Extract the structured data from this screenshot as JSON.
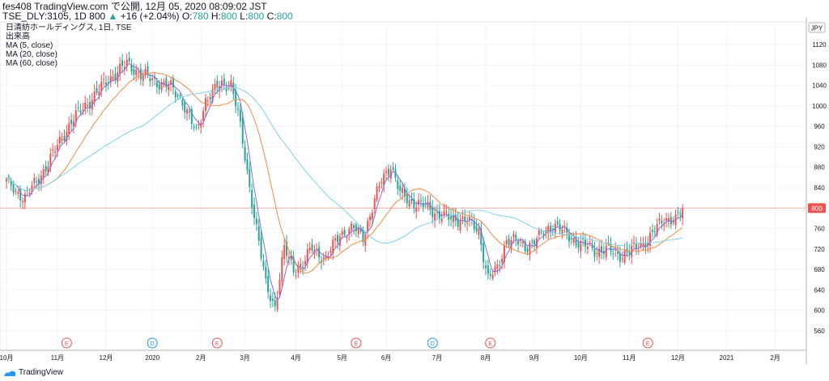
{
  "header": {
    "line1": "fes408 TradingView.com で公開, 12月 05, 2020 08:09:02 JST",
    "symbol_info": "TSE_DLY:3105, 1D 800",
    "change_arrow": "▲",
    "change": "+16 (+2.04%)",
    "o_label": "O:",
    "o_value": "780",
    "h_label": "H:",
    "h_value": "800",
    "l_label": "L:",
    "l_value": "800",
    "c_label": "C:",
    "c_value": "800"
  },
  "legend": {
    "title": "日清紡ホールディングス, 1日, TSE",
    "volume": "出来高",
    "ma5": "MA (5, close)",
    "ma20": "MA (20, close)",
    "ma60": "MA (60, close)"
  },
  "brand": {
    "name": "TradingView",
    "icon": "tradingview-logo-icon"
  },
  "colors": {
    "up": "#ef5350",
    "down": "#26a69a",
    "ma5": "#7e6fd8",
    "ma20": "#f28b45",
    "ma60": "#7fd3e6",
    "price_line": "#f7a8a8",
    "price_label_bg": "#ef5350",
    "grid": "#f0f3fa",
    "axis_text": "#131722",
    "event_E": "#ef5350",
    "event_D": "#2196f3"
  },
  "chart_data": {
    "type": "candlestick",
    "currency": "JPY",
    "last_price": 800,
    "ylim": [
      540,
      1140
    ],
    "y_ticks": [
      560,
      600,
      640,
      680,
      720,
      760,
      800,
      840,
      880,
      920,
      960,
      1000,
      1040,
      1080,
      1120
    ],
    "x_ticks": [
      {
        "label": "10月",
        "i": 0
      },
      {
        "label": "11月",
        "i": 22
      },
      {
        "label": "12月",
        "i": 43
      },
      {
        "label": "2020",
        "i": 63
      },
      {
        "label": "2月",
        "i": 84
      },
      {
        "label": "3月",
        "i": 103
      },
      {
        "label": "4月",
        "i": 125
      },
      {
        "label": "5月",
        "i": 145
      },
      {
        "label": "6月",
        "i": 164
      },
      {
        "label": "7月",
        "i": 186
      },
      {
        "label": "8月",
        "i": 207
      },
      {
        "label": "9月",
        "i": 228
      },
      {
        "label": "10月",
        "i": 248
      },
      {
        "label": "11月",
        "i": 269
      },
      {
        "label": "12月",
        "i": 290
      },
      {
        "label": "2021",
        "i": 311
      },
      {
        "label": "2月",
        "i": 332
      }
    ],
    "events": [
      {
        "type": "E",
        "i": 26
      },
      {
        "type": "D",
        "i": 63
      },
      {
        "type": "E",
        "i": 91
      },
      {
        "type": "E",
        "i": 151
      },
      {
        "type": "D",
        "i": 184
      },
      {
        "type": "E",
        "i": 209
      },
      {
        "type": "E",
        "i": 277
      }
    ],
    "close_keypoints": [
      [
        0,
        852
      ],
      [
        4,
        832
      ],
      [
        8,
        822
      ],
      [
        14,
        858
      ],
      [
        20,
        905
      ],
      [
        28,
        970
      ],
      [
        36,
        1010
      ],
      [
        44,
        1052
      ],
      [
        52,
        1082
      ],
      [
        58,
        1062
      ],
      [
        64,
        1048
      ],
      [
        70,
        1040
      ],
      [
        76,
        1010
      ],
      [
        82,
        945
      ],
      [
        86,
        1012
      ],
      [
        92,
        1040
      ],
      [
        97,
        1045
      ],
      [
        100,
        985
      ],
      [
        104,
        870
      ],
      [
        108,
        760
      ],
      [
        112,
        650
      ],
      [
        116,
        608
      ],
      [
        120,
        720
      ],
      [
        124,
        680
      ],
      [
        128,
        690
      ],
      [
        132,
        722
      ],
      [
        138,
        700
      ],
      [
        144,
        750
      ],
      [
        150,
        760
      ],
      [
        154,
        745
      ],
      [
        158,
        800
      ],
      [
        162,
        855
      ],
      [
        166,
        885
      ],
      [
        170,
        828
      ],
      [
        174,
        815
      ],
      [
        180,
        805
      ],
      [
        186,
        790
      ],
      [
        192,
        778
      ],
      [
        198,
        778
      ],
      [
        204,
        755
      ],
      [
        208,
        662
      ],
      [
        212,
        680
      ],
      [
        216,
        740
      ],
      [
        220,
        735
      ],
      [
        224,
        725
      ],
      [
        230,
        742
      ],
      [
        236,
        770
      ],
      [
        242,
        748
      ],
      [
        248,
        730
      ],
      [
        254,
        718
      ],
      [
        260,
        718
      ],
      [
        266,
        708
      ],
      [
        272,
        722
      ],
      [
        278,
        742
      ],
      [
        284,
        782
      ],
      [
        289,
        775
      ],
      [
        292,
        800
      ]
    ]
  }
}
